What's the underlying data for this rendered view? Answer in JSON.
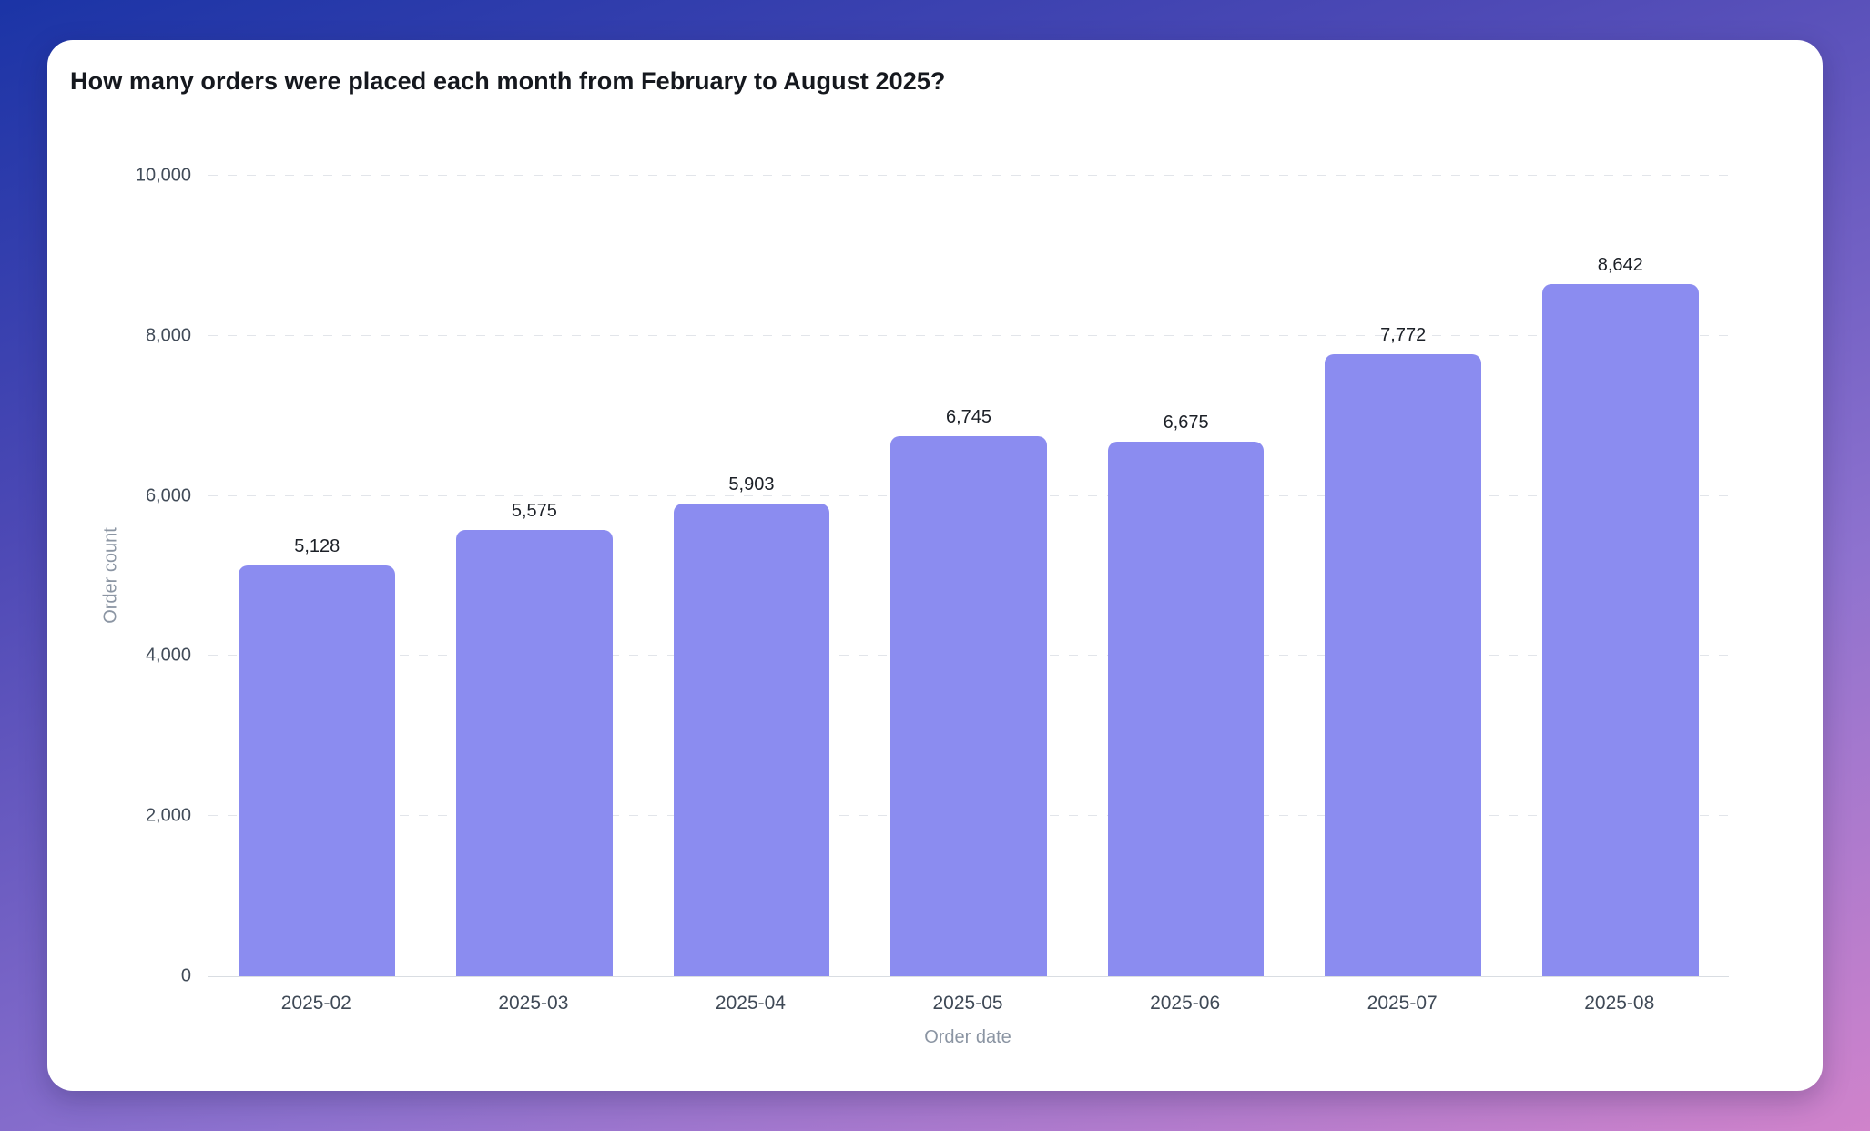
{
  "header": {
    "title": "How many orders were placed each month from February to August 2025?"
  },
  "chart_data": {
    "type": "bar",
    "categories": [
      "2025-02",
      "2025-03",
      "2025-04",
      "2025-05",
      "2025-06",
      "2025-07",
      "2025-08"
    ],
    "values": [
      5128,
      5575,
      5903,
      6745,
      6675,
      7772,
      8642
    ],
    "value_labels": [
      "5,128",
      "5,575",
      "5,903",
      "6,745",
      "6,675",
      "7,772",
      "8,642"
    ],
    "xlabel": "Order date",
    "ylabel": "Order count",
    "ylim": [
      0,
      10000
    ],
    "yticks": [
      0,
      2000,
      4000,
      6000,
      8000,
      10000
    ],
    "ytick_labels": [
      "0",
      "2,000",
      "4,000",
      "6,000",
      "8,000",
      "10,000"
    ],
    "grid": "horizontal-dashed",
    "legend": "none",
    "bar_color": "#8b8cf0"
  },
  "colors": {
    "background_gradient_start": "#1b34a6",
    "background_gradient_end": "#d083cb",
    "card_background": "#ffffff",
    "bar": "#8b8cf0",
    "tick_text": "#424c59",
    "axis_title_text": "#8b95a3",
    "value_label_text": "#1c2027",
    "gridline": "#e2e5ea",
    "axis_line": "#d9dde2"
  }
}
